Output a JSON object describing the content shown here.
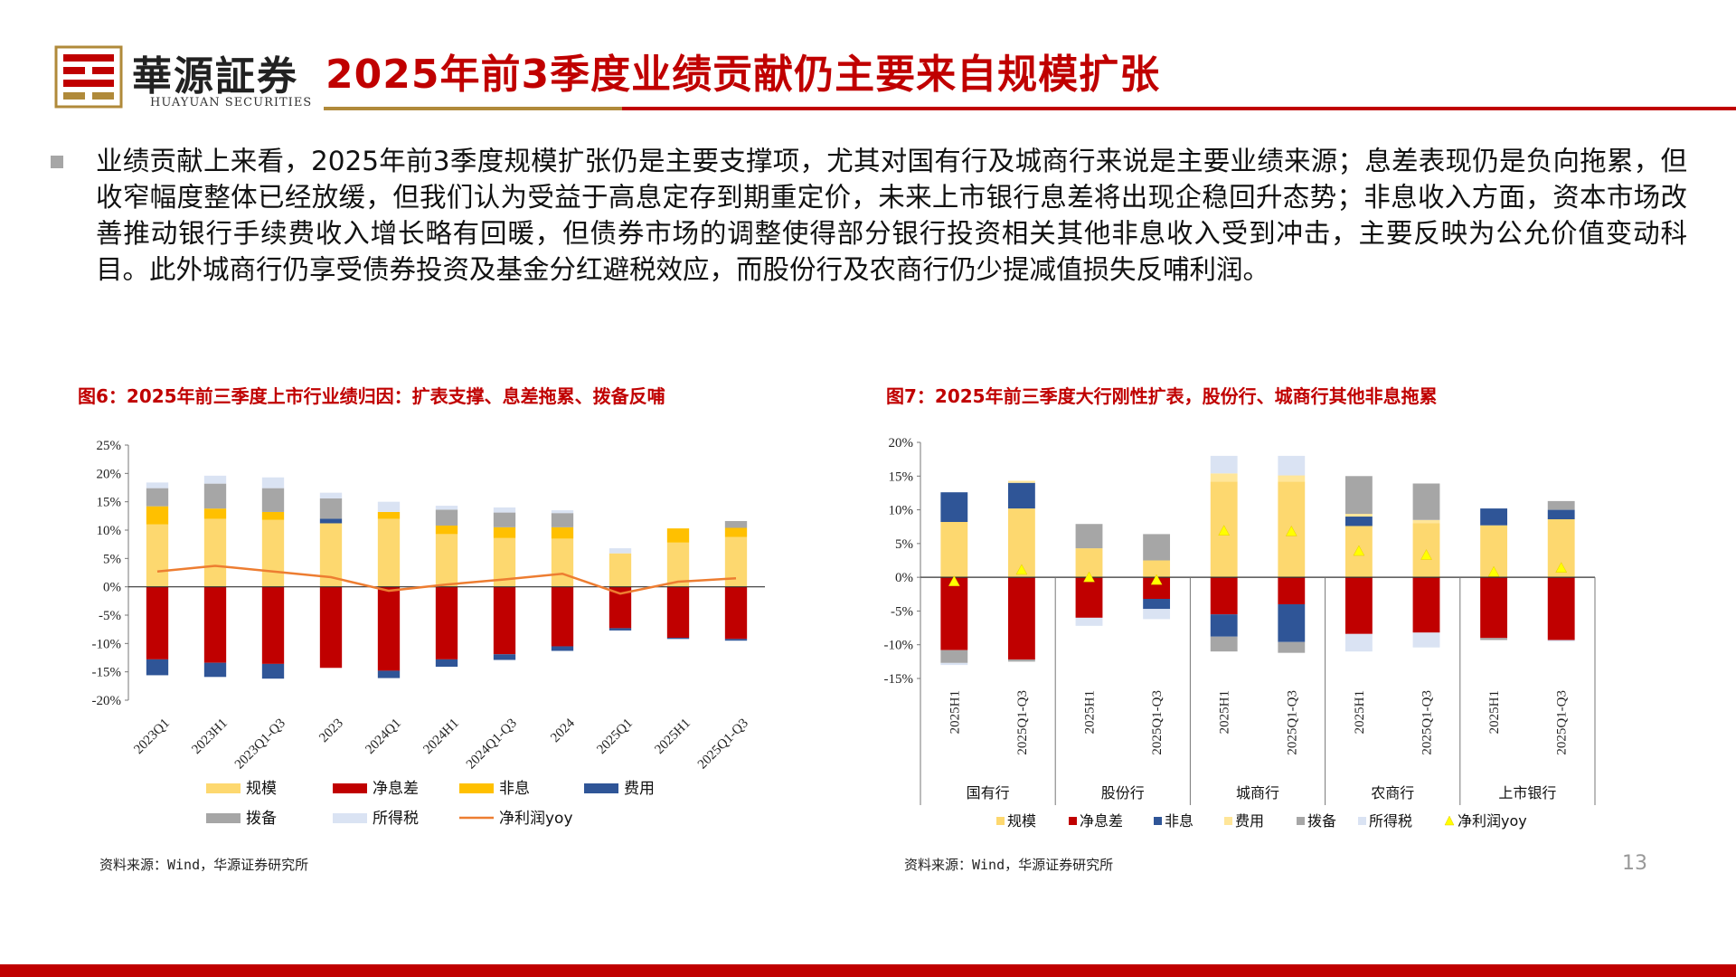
{
  "header": {
    "logo_cn": "華源証券",
    "logo_en": "HUAYUAN SECURITIES",
    "title": "2025年前3季度业绩贡献仍主要来自规模扩张",
    "accent_color": "#c00000"
  },
  "bullet": {
    "text": "业绩贡献上来看，2025年前3季度规模扩张仍是主要支撑项，尤其对国有行及城商行来说是主要业绩来源；息差表现仍是负向拖累，但收窄幅度整体已经放缓，但我们认为受益于高息定存到期重定价，未来上市银行息差将出现企稳回升态势；非息收入方面，资本市场改善推动银行手续费收入增长略有回暖，但债券市场的调整使得部分银行投资相关其他非息收入受到冲击，主要反映为公允价值变动科目。此外城商行仍享受债券投资及基金分红避税效应，而股份行及农商行仍少提减值损失反哺利润。"
  },
  "figures": {
    "fig6_title": "图6：2025年前三季度上市行业绩归因：扩表支撑、息差拖累、拨备反哺",
    "fig7_title": "图7：2025年前三季度大行刚性扩表，股份行、城商行其他非息拖累",
    "source6": "资料来源：Wind，华源证券研究所",
    "source7": "资料来源：Wind，华源证券研究所"
  },
  "page_number": "13",
  "chart_data": [
    {
      "type": "bar",
      "stacked": true,
      "categories": [
        "2023Q1",
        "2023H1",
        "2023Q1-Q3",
        "2023",
        "2024Q1",
        "2024H1",
        "2024Q1-Q3",
        "2024",
        "2025Q1",
        "2025H1",
        "2025Q1-Q3"
      ],
      "ylim": [
        -20,
        25
      ],
      "yticks": [
        "25%",
        "20%",
        "15%",
        "10%",
        "5%",
        "0%",
        "-5%",
        "-10%",
        "-15%",
        "-20%"
      ],
      "series": [
        {
          "name": "规模",
          "color": "#fdd86f",
          "values": [
            11.0,
            12.0,
            11.8,
            11.2,
            12.0,
            9.3,
            8.6,
            8.5,
            5.9,
            7.8,
            8.8
          ]
        },
        {
          "name": "净息差",
          "color": "#c00000",
          "values": [
            -12.8,
            -13.4,
            -13.6,
            -14.3,
            -14.8,
            -12.8,
            -11.9,
            -10.5,
            -7.3,
            -9.0,
            -9.2
          ]
        },
        {
          "name": "非息",
          "color": "#ffc000",
          "values": [
            3.2,
            1.8,
            1.4,
            0,
            1.2,
            1.5,
            1.9,
            2.0,
            0,
            2.5,
            1.6
          ]
        },
        {
          "name": "费用",
          "color": "#2f5597",
          "values": [
            -2.8,
            -2.5,
            -2.6,
            0.8,
            -1.3,
            -1.3,
            -1.0,
            -0.8,
            -0.4,
            -0.2,
            -0.3
          ]
        },
        {
          "name": "拨备",
          "color": "#a6a6a6",
          "values": [
            3.2,
            4.4,
            4.2,
            3.6,
            0,
            2.8,
            2.6,
            2.5,
            0,
            0,
            1.2
          ]
        },
        {
          "name": "所得税",
          "color": "#dae3f3",
          "values": [
            1.0,
            1.4,
            1.9,
            1.0,
            1.8,
            0.7,
            0.9,
            0.5,
            0.9,
            0,
            0
          ]
        }
      ],
      "line_series": {
        "name": "净利润yoy",
        "color": "#ed7d31",
        "values": [
          2.7,
          3.7,
          2.7,
          1.7,
          -0.7,
          0.4,
          1.3,
          2.3,
          -1.2,
          0.9,
          1.5
        ]
      },
      "legend": [
        "规模",
        "净息差",
        "非息",
        "费用",
        "拨备",
        "所得税",
        "净利润yoy"
      ]
    },
    {
      "type": "bar",
      "stacked": true,
      "categories": [
        "2025H1",
        "2025Q1-Q3",
        "2025H1",
        "2025Q1-Q3",
        "2025H1",
        "2025Q1-Q3",
        "2025H1",
        "2025Q1-Q3",
        "2025H1",
        "2025Q1-Q3"
      ],
      "groups": [
        "国有行",
        "股份行",
        "城商行",
        "农商行",
        "上市银行"
      ],
      "ylim": [
        -15,
        20
      ],
      "yticks": [
        "20%",
        "15%",
        "10%",
        "5%",
        "0%",
        "-5%",
        "-10%",
        "-15%"
      ],
      "series": [
        {
          "name": "规模",
          "color": "#fdd86f",
          "values": [
            8.2,
            10.2,
            4.3,
            2.5,
            14.2,
            14.2,
            7.6,
            8.0,
            7.7,
            8.6
          ]
        },
        {
          "name": "净息差",
          "color": "#c00000",
          "values": [
            -10.8,
            -12.2,
            -6.0,
            -3.2,
            -5.5,
            -4.0,
            -8.4,
            -8.2,
            -9.0,
            -9.3
          ]
        },
        {
          "name": "非息",
          "color": "#2f5597",
          "values": [
            4.4,
            3.8,
            0,
            -1.5,
            -3.3,
            -5.6,
            1.4,
            0,
            2.5,
            1.4
          ]
        },
        {
          "name": "费用",
          "color": "#ffe699",
          "values": [
            0,
            0.3,
            0,
            0,
            1.2,
            0.9,
            0.4,
            0.5,
            0,
            0
          ]
        },
        {
          "name": "拨备",
          "color": "#a6a6a6",
          "values": [
            -1.9,
            -0.3,
            3.6,
            3.9,
            -2.2,
            -1.6,
            5.6,
            5.4,
            -0.3,
            1.3
          ]
        },
        {
          "name": "所得税",
          "color": "#dae3f3",
          "values": [
            -0.3,
            0,
            -1.2,
            -1.5,
            2.6,
            2.9,
            -2.6,
            -2.2,
            0,
            -0.2
          ]
        }
      ],
      "point_series": {
        "name": "净利润yoy",
        "color": "#ffff00",
        "values": [
          -0.6,
          1.1,
          0,
          -0.4,
          6.9,
          6.8,
          3.9,
          3.3,
          0.8,
          1.4
        ]
      },
      "legend": [
        "规模",
        "净息差",
        "非息",
        "费用",
        "拨备",
        "所得税",
        "净利润yoy"
      ]
    }
  ]
}
